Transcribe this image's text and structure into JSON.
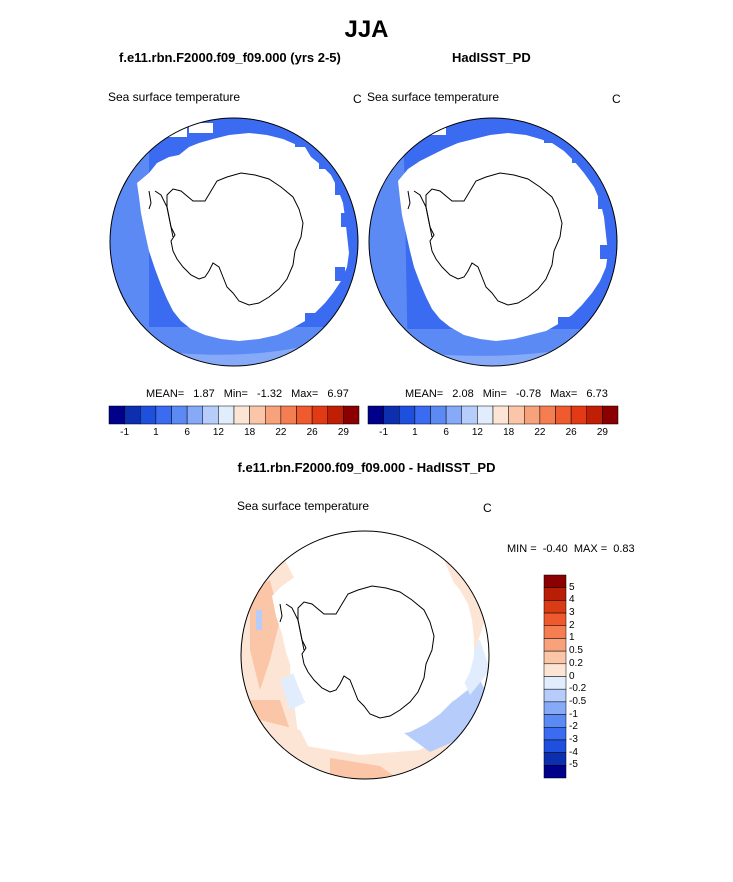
{
  "page_title": "JJA",
  "panel_left": {
    "case_title": "f.e11.rbn.F2000.f09_f09.000 (yrs 2-5)",
    "variable": "Sea surface temperature",
    "units": "C",
    "stats_mean_label": "MEAN=",
    "stats_mean": "1.87",
    "stats_min_label": "Min=",
    "stats_min": "-1.32",
    "stats_max_label": "Max=",
    "stats_max": "6.97"
  },
  "panel_right": {
    "case_title": "HadISST_PD",
    "variable": "Sea surface temperature",
    "units": "C",
    "stats_mean_label": "MEAN=",
    "stats_mean": "2.08",
    "stats_min_label": "Min=",
    "stats_min": "-0.78",
    "stats_max_label": "Max=",
    "stats_max": "6.73"
  },
  "panel_diff": {
    "case_title": "f.e11.rbn.F2000.f09_f09.000 - HadISST_PD",
    "variable": "Sea surface temperature",
    "units": "C",
    "minmax_min_label": "MIN =",
    "minmax_min": "-0.40",
    "minmax_max_label": "MAX =",
    "minmax_max": "0.83"
  },
  "colorbar_abs": {
    "colors": [
      "#00008b",
      "#0c2fb0",
      "#1f4fdd",
      "#3a6bf0",
      "#5b8af5",
      "#86aaf8",
      "#b6cdfb",
      "#e1ecfd",
      "#fde5d6",
      "#fbc6a8",
      "#f8a27b",
      "#f47d52",
      "#ef5a2e",
      "#e23a14",
      "#c01e05",
      "#8b0000"
    ],
    "labels": [
      "-1",
      "1",
      "6",
      "12",
      "18",
      "22",
      "26",
      "29"
    ]
  },
  "colorbar_diff": {
    "colors": [
      "#8b0000",
      "#b81e05",
      "#da3a14",
      "#ee5a2e",
      "#f47d52",
      "#f8a27b",
      "#fbc6a8",
      "#fde5d6",
      "#e1ecfd",
      "#b6cdfb",
      "#86aaf8",
      "#5b8af5",
      "#3a6bf0",
      "#1f4fdd",
      "#0c2fb0",
      "#00008b"
    ],
    "labels": [
      "5",
      "4",
      "3",
      "2",
      "1",
      "0.5",
      "0.2",
      "0",
      "-0.2",
      "-0.5",
      "-1",
      "-2",
      "-3",
      "-4",
      "-5"
    ]
  },
  "field_colors": {
    "ice_free_deep": "#1f4fdd",
    "ice_free_mid": "#3a6bf0",
    "ice_free_light": "#5b8af5",
    "land_and_ice": "#ffffff",
    "diff_warm_light": "#fde5d6",
    "diff_warm": "#fbc6a8",
    "diff_cool_light": "#e1ecfd",
    "diff_cool": "#b6cdfb"
  }
}
